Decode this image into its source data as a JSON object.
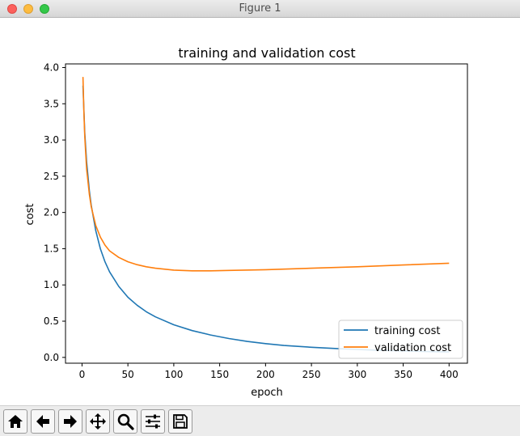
{
  "window": {
    "title": "Figure 1"
  },
  "toolbar": {
    "items": [
      {
        "name": "home-button",
        "icon": "home-icon"
      },
      {
        "name": "back-button",
        "icon": "arrow-left-icon"
      },
      {
        "name": "forward-button",
        "icon": "arrow-right-icon"
      },
      {
        "name": "pan-button",
        "icon": "move-icon"
      },
      {
        "name": "zoom-button",
        "icon": "magnifier-icon"
      },
      {
        "name": "configure-subplots-button",
        "icon": "sliders-icon"
      },
      {
        "name": "save-button",
        "icon": "floppy-disk-icon"
      }
    ]
  },
  "chart_data": {
    "type": "line",
    "title": "training and validation cost",
    "xlabel": "epoch",
    "ylabel": "cost",
    "xlim": [
      -18,
      420
    ],
    "ylim": [
      -0.08,
      4.05
    ],
    "xticks": [
      0,
      50,
      100,
      150,
      200,
      250,
      300,
      350,
      400
    ],
    "xtick_labels": [
      "0",
      "50",
      "100",
      "150",
      "200",
      "250",
      "300",
      "350",
      "400"
    ],
    "yticks": [
      0.0,
      0.5,
      1.0,
      1.5,
      2.0,
      2.5,
      3.0,
      3.5,
      4.0
    ],
    "ytick_labels": [
      "0.0",
      "0.5",
      "1.0",
      "1.5",
      "2.0",
      "2.5",
      "3.0",
      "3.5",
      "4.0"
    ],
    "grid": false,
    "legend_position": "lower-right",
    "series": [
      {
        "name": "training cost",
        "color": "#1f77b4",
        "x": [
          1,
          3,
          5,
          8,
          10,
          15,
          20,
          25,
          30,
          40,
          50,
          60,
          70,
          80,
          100,
          120,
          140,
          160,
          180,
          200,
          220,
          250,
          280,
          300,
          320,
          350,
          380,
          400
        ],
        "y": [
          3.75,
          3.1,
          2.7,
          2.3,
          2.1,
          1.75,
          1.5,
          1.32,
          1.18,
          0.98,
          0.83,
          0.72,
          0.63,
          0.56,
          0.45,
          0.37,
          0.31,
          0.26,
          0.22,
          0.19,
          0.165,
          0.14,
          0.12,
          0.11,
          0.1,
          0.09,
          0.08,
          0.075
        ]
      },
      {
        "name": "validation cost",
        "color": "#ff7f0e",
        "x": [
          1,
          2,
          3,
          5,
          8,
          10,
          15,
          20,
          25,
          30,
          40,
          50,
          60,
          70,
          80,
          100,
          120,
          140,
          160,
          200,
          250,
          300,
          350,
          400
        ],
        "y": [
          3.87,
          3.4,
          3.05,
          2.6,
          2.25,
          2.08,
          1.82,
          1.66,
          1.55,
          1.47,
          1.38,
          1.32,
          1.28,
          1.25,
          1.23,
          1.205,
          1.195,
          1.195,
          1.2,
          1.21,
          1.23,
          1.25,
          1.275,
          1.3
        ]
      }
    ]
  }
}
